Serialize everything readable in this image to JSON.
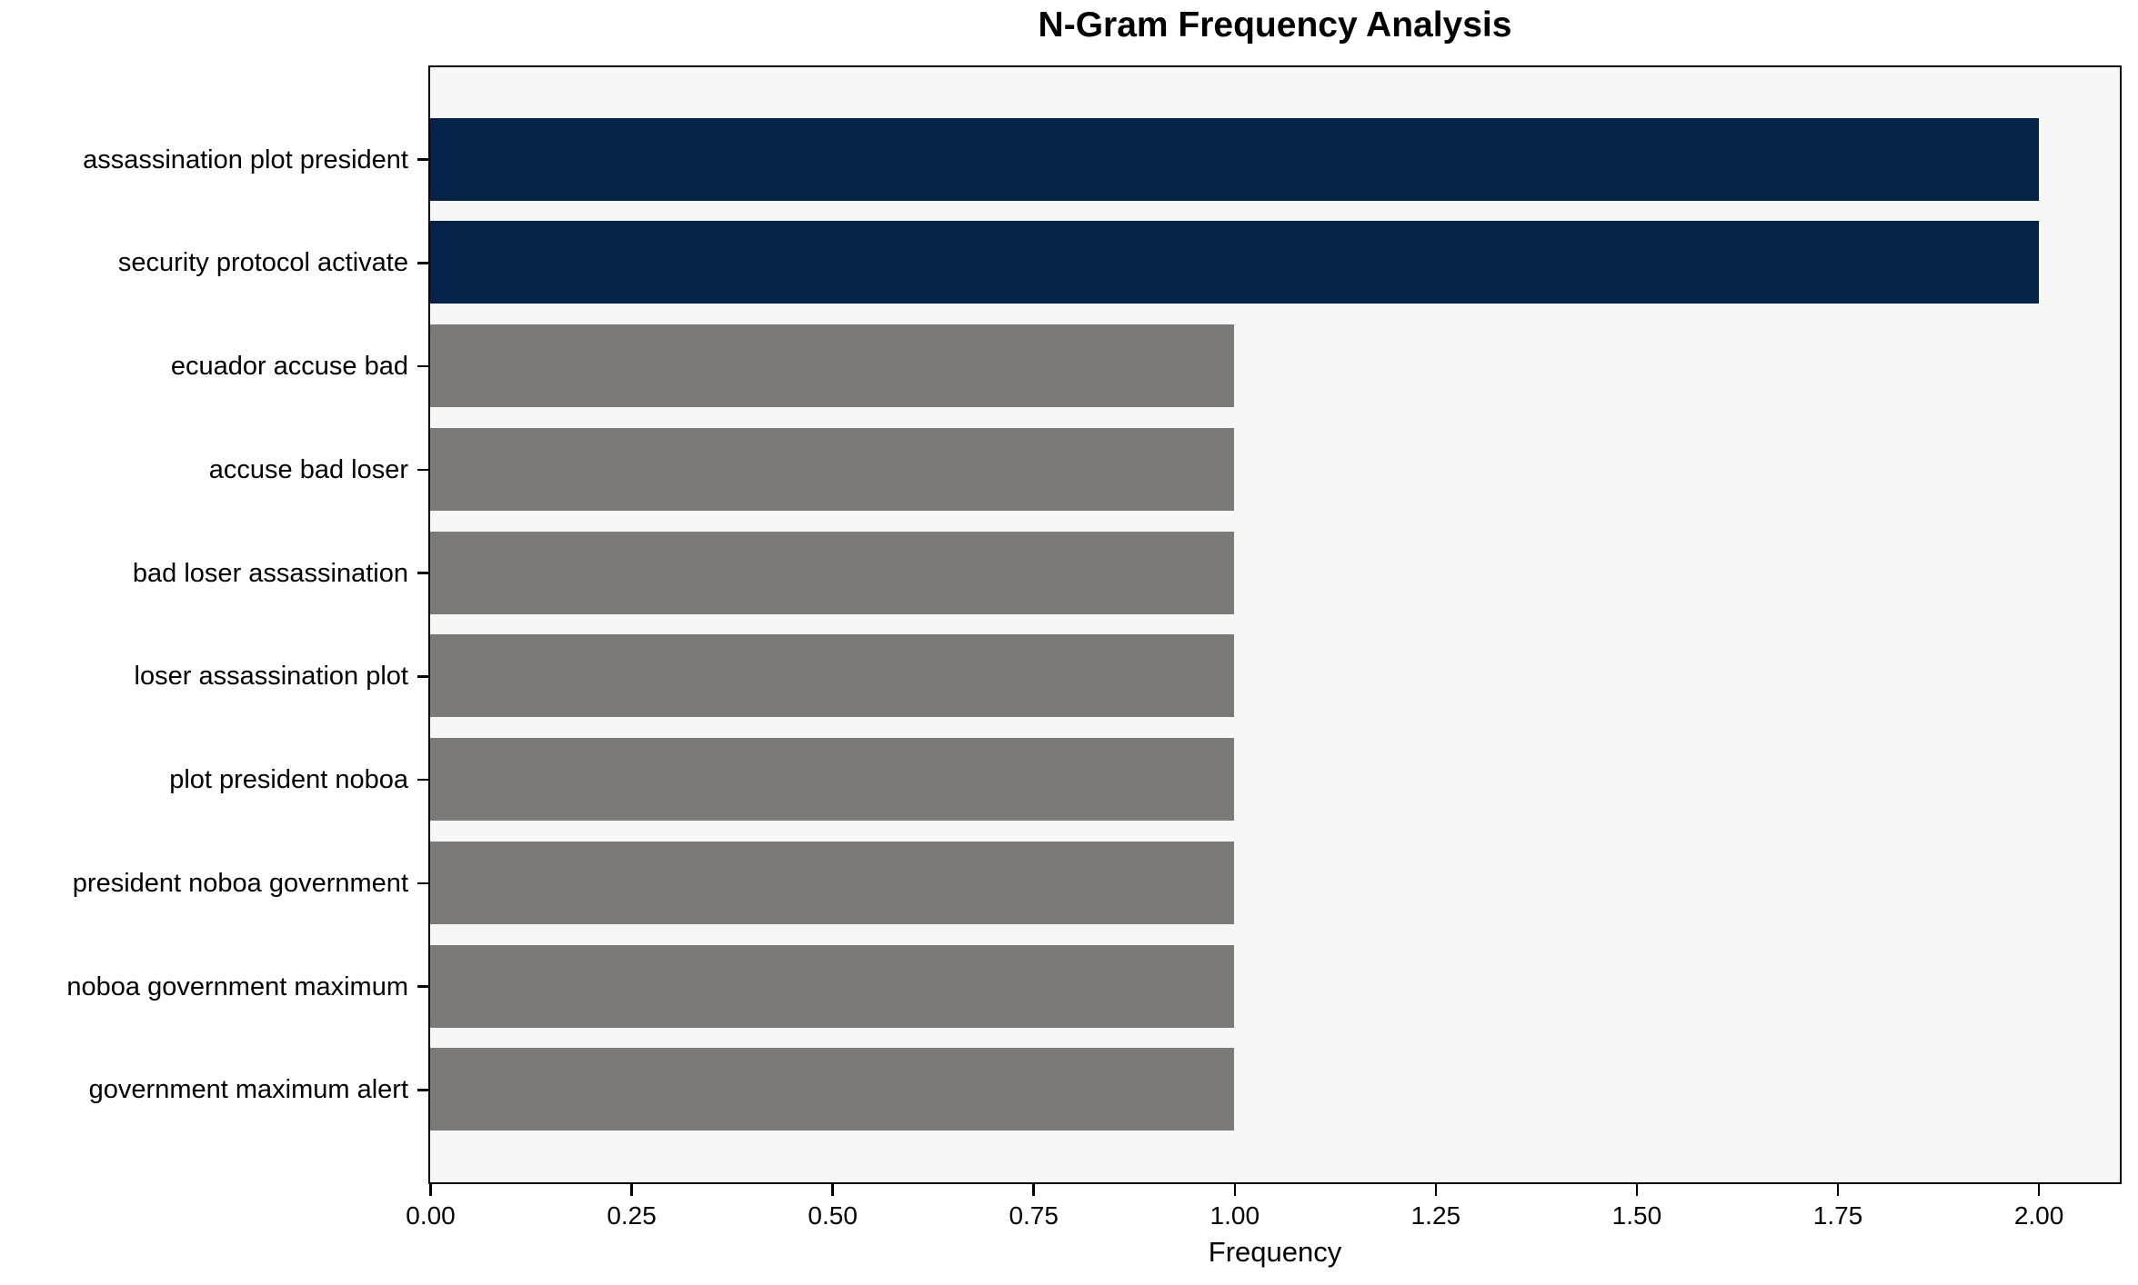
{
  "chart_data": {
    "type": "bar",
    "orientation": "horizontal",
    "title": "N-Gram Frequency Analysis",
    "xlabel": "Frequency",
    "ylabel": "",
    "categories": [
      "assassination plot president",
      "security protocol activate",
      "ecuador accuse bad",
      "accuse bad loser",
      "bad loser assassination",
      "loser assassination plot",
      "plot president noboa",
      "president noboa government",
      "noboa government maximum",
      "government maximum alert"
    ],
    "values": [
      2,
      2,
      1,
      1,
      1,
      1,
      1,
      1,
      1,
      1
    ],
    "bar_colors": [
      "#052348",
      "#052348",
      "#7b7a77",
      "#7b7a77",
      "#7b7a77",
      "#7b7a77",
      "#7b7a77",
      "#7b7a77",
      "#7b7a77",
      "#7b7a77"
    ],
    "xlim": [
      0,
      2.1
    ],
    "x_tick_values": [
      0,
      0.25,
      0.5,
      0.75,
      1.0,
      1.25,
      1.5,
      1.75,
      2.0
    ],
    "x_tick_labels": [
      "0.00",
      "0.25",
      "0.50",
      "0.75",
      "1.00",
      "1.25",
      "1.50",
      "1.75",
      "2.00"
    ],
    "grid": false,
    "legend": null,
    "colors": {
      "highlight_bar": "#052348",
      "default_bar": "#7b7a77",
      "plot_background": "#f7f7f7",
      "figure_background": "#ffffff",
      "spine": "#000000",
      "text": "#000000"
    }
  }
}
